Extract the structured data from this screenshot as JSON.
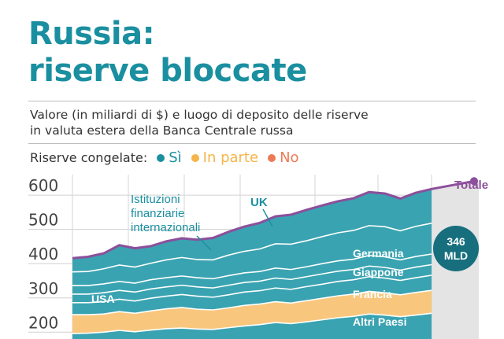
{
  "title": {
    "line1": "Russia:",
    "line2": "riserve bloccate"
  },
  "subtitle": {
    "line1": "Valore (in miliardi di $) e luogo di deposito delle riserve",
    "line2": "in valuta estera della Banca Centrale russa"
  },
  "legend": {
    "label": "Riserve congelate:",
    "items": [
      {
        "label": "Sì",
        "color": "#1a8fa0"
      },
      {
        "label": "In parte",
        "color": "#f5b54a"
      },
      {
        "label": "No",
        "color": "#ee7a55"
      }
    ]
  },
  "colors": {
    "title": "#1a8fa0",
    "band": "#3aa3b1",
    "band_line": "#ffffff",
    "total_line": "#8c4f9b",
    "total_label": "#8c4f9b",
    "altri": "#f8c77d",
    "badge": "#176f7e",
    "shade": "#e4e4e4"
  },
  "chart_data": {
    "type": "area",
    "ylim": [
      180,
      660
    ],
    "yticks": [
      "600",
      "500",
      "400",
      "300",
      "200"
    ],
    "ytick_values": [
      600,
      500,
      400,
      300,
      200
    ],
    "x": [
      0,
      1,
      2,
      3,
      4,
      5,
      6,
      7,
      8,
      9,
      10,
      11,
      12,
      13,
      14,
      15,
      16,
      17,
      18,
      19,
      20,
      21,
      22,
      23
    ],
    "series": [
      {
        "name": "USA",
        "values": [
          196,
          197,
          200,
          205,
          201,
          206,
          210,
          212,
          209,
          208,
          213,
          218,
          222,
          228,
          225,
          230,
          236,
          242,
          246,
          253,
          250,
          245,
          250,
          255
        ]
      },
      {
        "name": "Altri Paesi",
        "values": [
          55,
          54,
          53,
          55,
          54,
          56,
          58,
          60,
          58,
          57,
          58,
          60,
          60,
          61,
          60,
          62,
          63,
          64,
          65,
          66,
          65,
          64,
          66,
          67
        ]
      },
      {
        "name": "Francia",
        "values": [
          35,
          35,
          36,
          36,
          36,
          37,
          37,
          38,
          38,
          37,
          38,
          39,
          39,
          40,
          40,
          41,
          41,
          42,
          42,
          43,
          43,
          42,
          43,
          44
        ]
      },
      {
        "name": "Giappone",
        "values": [
          25,
          25,
          26,
          26,
          26,
          27,
          27,
          27,
          27,
          27,
          28,
          28,
          28,
          29,
          29,
          29,
          30,
          30,
          30,
          31,
          31,
          30,
          31,
          31
        ]
      },
      {
        "name": "Germania",
        "values": [
          25,
          25,
          26,
          26,
          26,
          27,
          27,
          27,
          27,
          27,
          28,
          28,
          28,
          29,
          29,
          29,
          30,
          30,
          30,
          31,
          31,
          30,
          31,
          31
        ]
      },
      {
        "name": "Istituzioni finanziarie internazionali",
        "values": [
          40,
          41,
          44,
          48,
          47,
          48,
          52,
          54,
          53,
          55,
          60,
          63,
          66,
          71,
          74,
          76,
          79,
          82,
          84,
          87,
          88,
          85,
          88,
          90
        ]
      },
      {
        "name": "UK",
        "values": [
          40,
          43,
          45,
          58,
          55,
          50,
          54,
          56,
          58,
          64,
          68,
          72,
          76,
          80,
          86,
          90,
          91,
          92,
          94,
          98,
          97,
          94,
          98,
          100
        ]
      }
    ],
    "total": {
      "label": "Totale",
      "values": [
        416,
        420,
        430,
        454,
        445,
        451,
        465,
        474,
        470,
        475,
        493,
        508,
        519,
        538,
        543,
        557,
        570,
        582,
        591,
        609,
        605,
        590,
        607,
        618
      ]
    },
    "annotations": {
      "usa": "USA",
      "altri": "Altri Paesi",
      "francia": "Francia",
      "giappone": "Giappone",
      "germania": "Germania",
      "ist_line1": "Istituzioni",
      "ist_line2": "finanziarie",
      "ist_line3": "internazionali",
      "uk": "UK",
      "badge_value": "346",
      "badge_unit": "MLD"
    }
  }
}
